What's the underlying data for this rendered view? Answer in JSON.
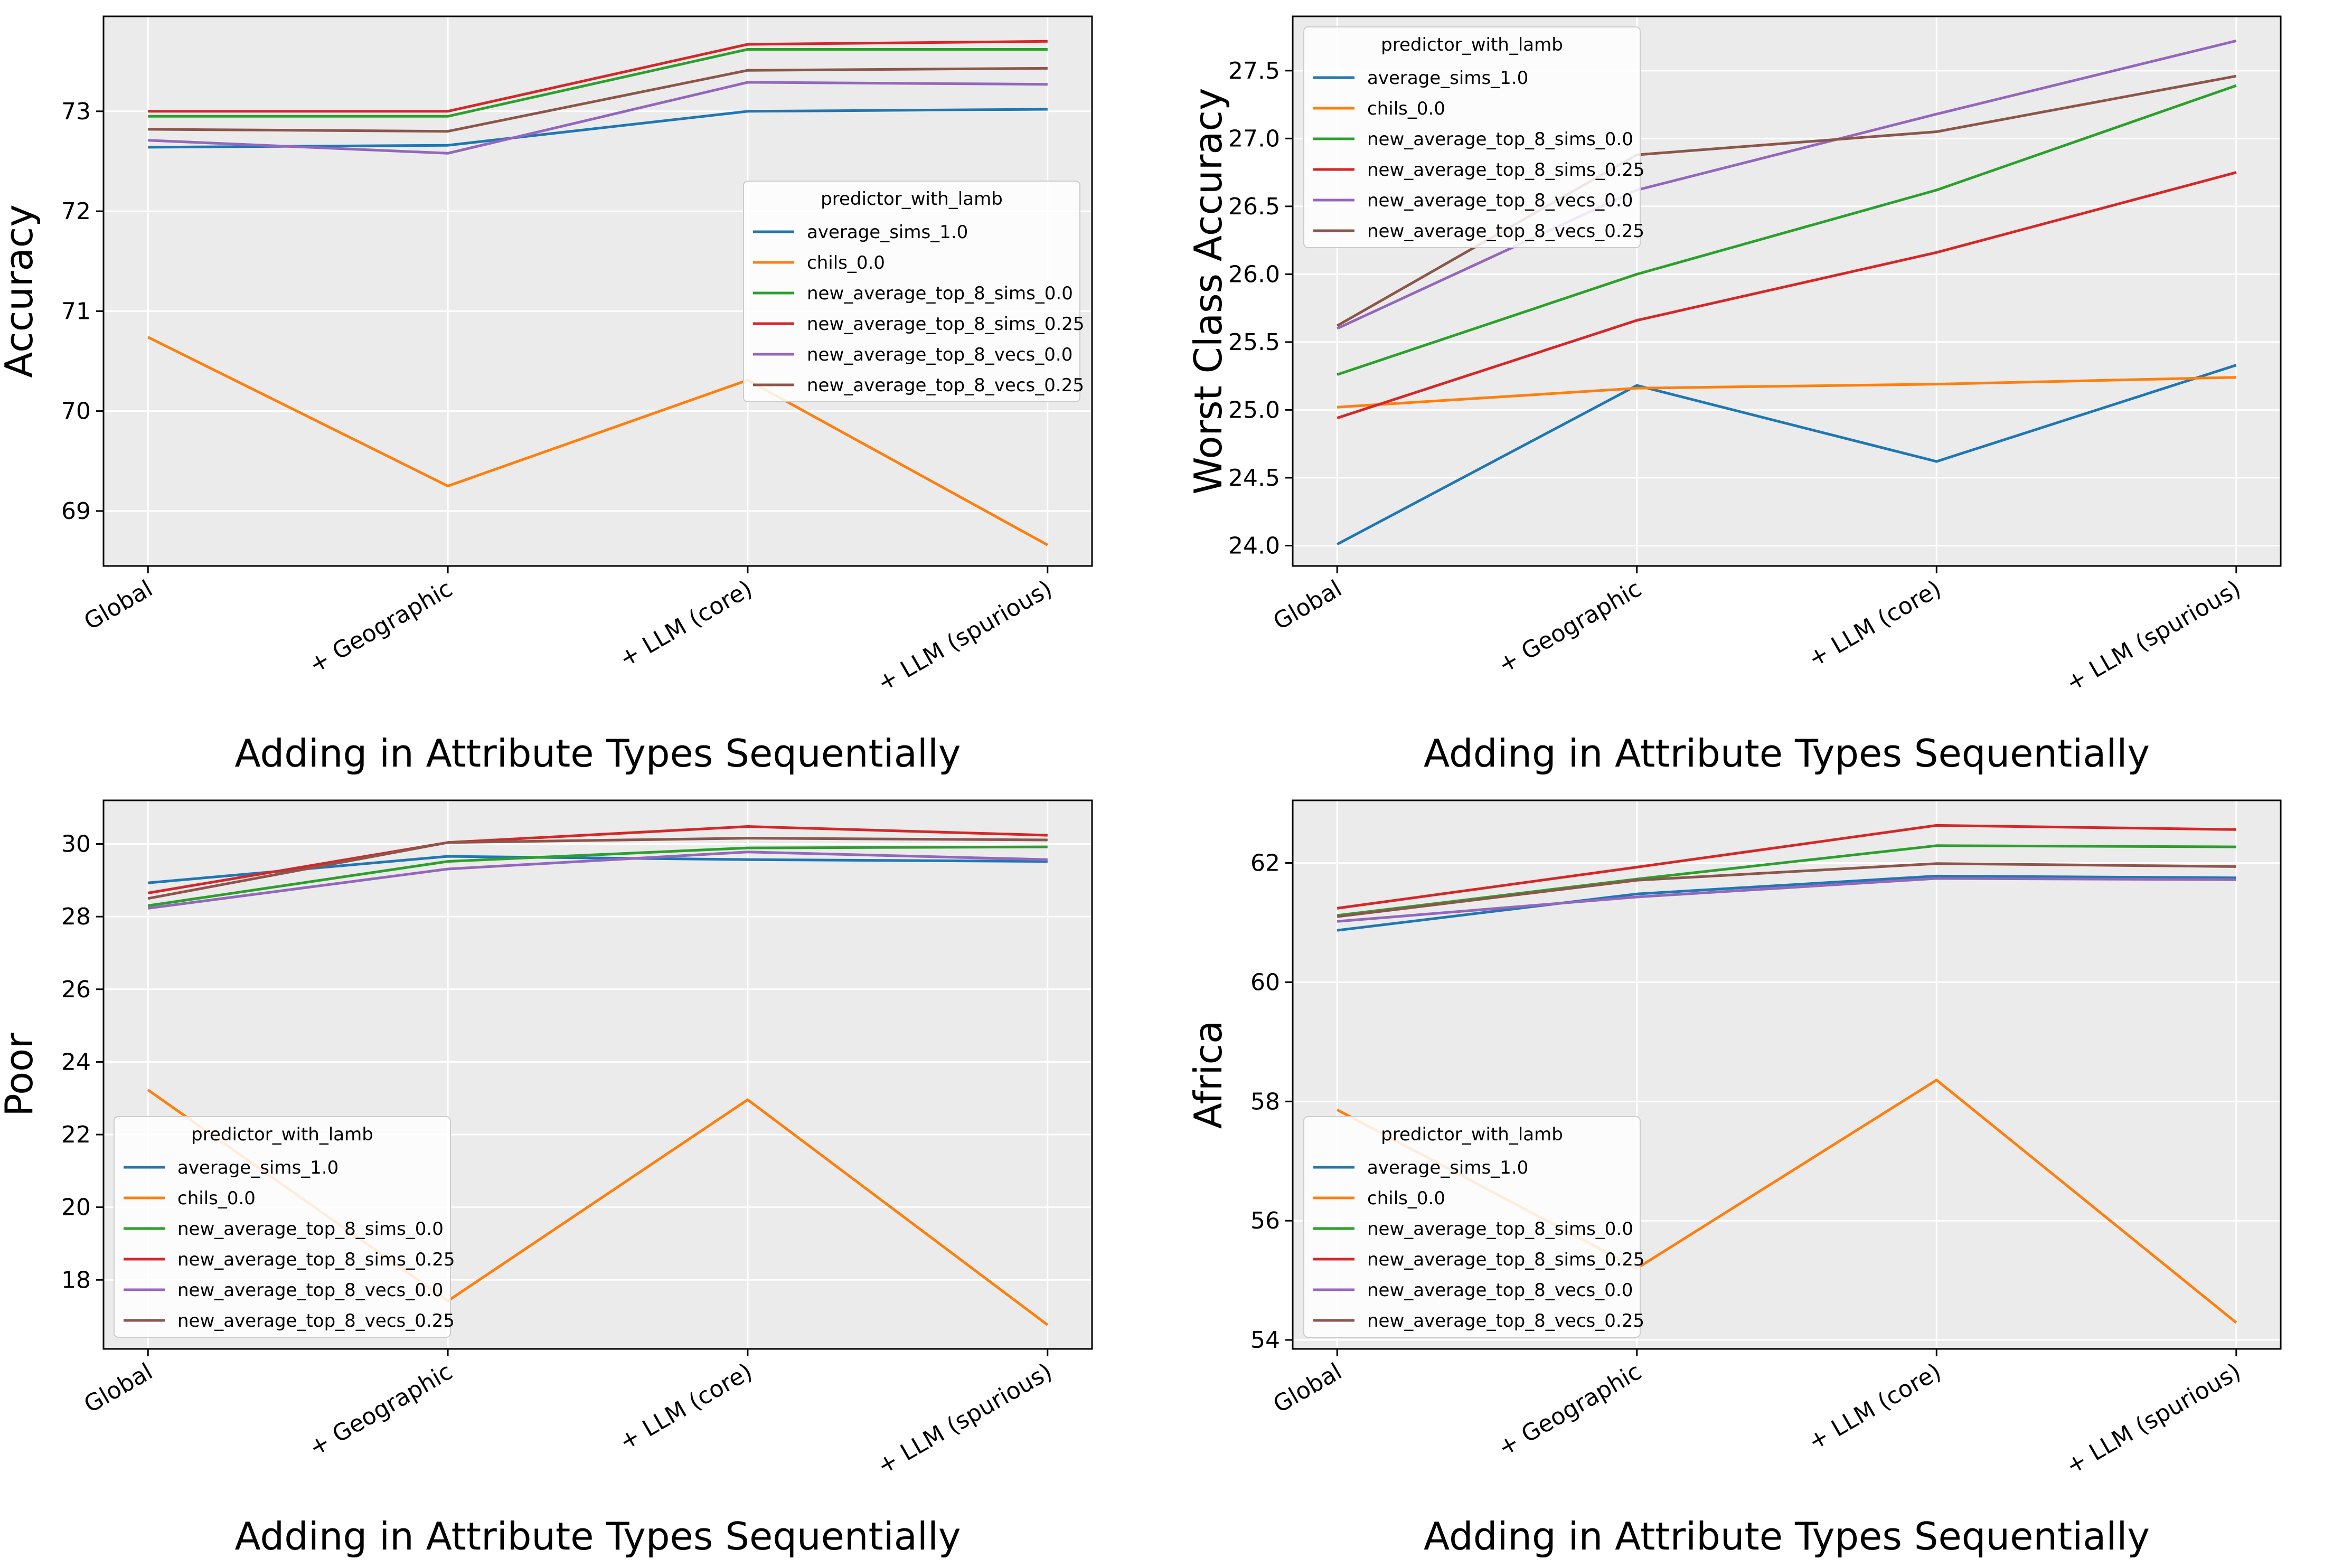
{
  "chart_data": [
    {
      "type": "line",
      "xlabel": "Adding in Attribute Types Sequentially",
      "ylabel": "Accuracy",
      "categories": [
        "Global",
        "+ Geographic",
        "+ LLM (core)",
        "+ LLM (spurious)"
      ],
      "ylim": [
        68.45,
        73.95
      ],
      "yticks": [
        69,
        70,
        71,
        72,
        73
      ],
      "grid": true,
      "legend": {
        "title": "predictor_with_lamb",
        "position": "center-right"
      },
      "series": [
        {
          "name": "average_sims_1.0",
          "color": "#1f77b4",
          "values": [
            72.64,
            72.66,
            73.0,
            73.02
          ]
        },
        {
          "name": "chils_0.0",
          "color": "#ff7f0e",
          "values": [
            70.74,
            69.25,
            70.31,
            68.66
          ]
        },
        {
          "name": "new_average_top_8_sims_0.0",
          "color": "#2ca02c",
          "values": [
            72.95,
            72.95,
            73.62,
            73.62
          ]
        },
        {
          "name": "new_average_top_8_sims_0.25",
          "color": "#d62728",
          "values": [
            73.0,
            73.0,
            73.67,
            73.7
          ]
        },
        {
          "name": "new_average_top_8_vecs_0.0",
          "color": "#9467bd",
          "values": [
            72.71,
            72.58,
            73.29,
            73.27
          ]
        },
        {
          "name": "new_average_top_8_vecs_0.25",
          "color": "#8c564b",
          "values": [
            72.82,
            72.8,
            73.41,
            73.43
          ]
        }
      ]
    },
    {
      "type": "line",
      "xlabel": "Adding in Attribute Types Sequentially",
      "ylabel": "Worst Class Accuracy",
      "categories": [
        "Global",
        "+ Geographic",
        "+ LLM (core)",
        "+ LLM (spurious)"
      ],
      "ylim": [
        23.85,
        27.9
      ],
      "yticks": [
        24.0,
        24.5,
        25.0,
        25.5,
        26.0,
        26.5,
        27.0,
        27.5
      ],
      "ytick_labels": [
        "24.0",
        "24.5",
        "25.0",
        "25.5",
        "26.0",
        "26.5",
        "27.0",
        "27.5"
      ],
      "grid": true,
      "legend": {
        "title": "predictor_with_lamb",
        "position": "top-left"
      },
      "series": [
        {
          "name": "average_sims_1.0",
          "color": "#1f77b4",
          "values": [
            24.01,
            25.18,
            24.62,
            25.33
          ]
        },
        {
          "name": "chils_0.0",
          "color": "#ff7f0e",
          "values": [
            25.02,
            25.16,
            25.19,
            25.24
          ]
        },
        {
          "name": "new_average_top_8_sims_0.0",
          "color": "#2ca02c",
          "values": [
            25.26,
            26.0,
            26.62,
            27.39
          ]
        },
        {
          "name": "new_average_top_8_sims_0.25",
          "color": "#d62728",
          "values": [
            24.94,
            25.66,
            26.16,
            26.75
          ]
        },
        {
          "name": "new_average_top_8_vecs_0.0",
          "color": "#9467bd",
          "values": [
            25.6,
            26.62,
            27.18,
            27.72
          ]
        },
        {
          "name": "new_average_top_8_vecs_0.25",
          "color": "#8c564b",
          "values": [
            25.62,
            26.88,
            27.05,
            27.46
          ]
        }
      ]
    },
    {
      "type": "line",
      "xlabel": "Adding in Attribute Types Sequentially",
      "ylabel": "Poor",
      "categories": [
        "Global",
        "+ Geographic",
        "+ LLM (core)",
        "+ LLM (spurious)"
      ],
      "ylim": [
        16.1,
        31.2
      ],
      "yticks": [
        18,
        20,
        22,
        24,
        26,
        28,
        30
      ],
      "grid": true,
      "legend": {
        "title": "predictor_with_lamb",
        "position": "lower-left"
      },
      "series": [
        {
          "name": "average_sims_1.0",
          "color": "#1f77b4",
          "values": [
            28.93,
            29.66,
            29.57,
            29.52
          ]
        },
        {
          "name": "chils_0.0",
          "color": "#ff7f0e",
          "values": [
            23.23,
            17.42,
            22.96,
            16.76
          ]
        },
        {
          "name": "new_average_top_8_sims_0.0",
          "color": "#2ca02c",
          "values": [
            28.3,
            29.52,
            29.89,
            29.92
          ]
        },
        {
          "name": "new_average_top_8_sims_0.25",
          "color": "#d62728",
          "values": [
            28.65,
            30.04,
            30.48,
            30.24
          ]
        },
        {
          "name": "new_average_top_8_vecs_0.0",
          "color": "#9467bd",
          "values": [
            28.23,
            29.31,
            29.78,
            29.57
          ]
        },
        {
          "name": "new_average_top_8_vecs_0.25",
          "color": "#8c564b",
          "values": [
            28.5,
            30.04,
            30.16,
            30.11
          ]
        }
      ]
    },
    {
      "type": "line",
      "xlabel": "Adding in Attribute Types Sequentially",
      "ylabel": "Africa",
      "categories": [
        "Global",
        "+ Geographic",
        "+ LLM (core)",
        "+ LLM (spurious)"
      ],
      "ylim": [
        53.85,
        63.05
      ],
      "yticks": [
        54,
        56,
        58,
        60,
        62
      ],
      "grid": true,
      "legend": {
        "title": "predictor_with_lamb",
        "position": "lower-left"
      },
      "series": [
        {
          "name": "average_sims_1.0",
          "color": "#1f77b4",
          "values": [
            60.87,
            61.48,
            61.78,
            61.75
          ]
        },
        {
          "name": "chils_0.0",
          "color": "#ff7f0e",
          "values": [
            57.86,
            55.2,
            58.36,
            54.29
          ]
        },
        {
          "name": "new_average_top_8_sims_0.0",
          "color": "#2ca02c",
          "values": [
            61.12,
            61.73,
            62.29,
            62.27
          ]
        },
        {
          "name": "new_average_top_8_sims_0.25",
          "color": "#d62728",
          "values": [
            61.24,
            61.93,
            62.63,
            62.56
          ]
        },
        {
          "name": "new_average_top_8_vecs_0.0",
          "color": "#9467bd",
          "values": [
            61.02,
            61.43,
            61.74,
            61.72
          ]
        },
        {
          "name": "new_average_top_8_vecs_0.25",
          "color": "#8c564b",
          "values": [
            61.1,
            61.71,
            61.99,
            61.94
          ]
        }
      ]
    }
  ]
}
